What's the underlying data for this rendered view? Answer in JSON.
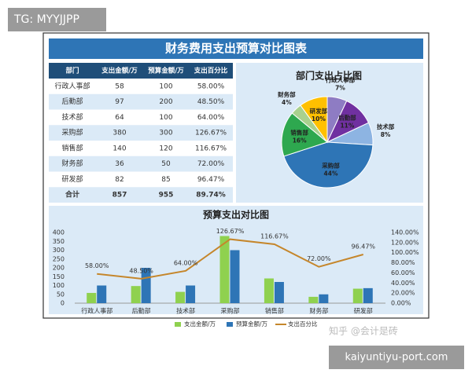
{
  "tag": "TG: MYYJJPP",
  "header": {
    "title": "财务费用支出预算对比图表"
  },
  "table": {
    "columns": [
      "部门",
      "支出金额/万",
      "预算金额/万",
      "支出百分比"
    ],
    "rows": [
      [
        "行政人事部",
        "58",
        "100",
        "58.00%"
      ],
      [
        "后勤部",
        "97",
        "200",
        "48.50%"
      ],
      [
        "技术部",
        "64",
        "100",
        "64.00%"
      ],
      [
        "采购部",
        "380",
        "300",
        "126.67%"
      ],
      [
        "销售部",
        "140",
        "120",
        "116.67%"
      ],
      [
        "财务部",
        "36",
        "50",
        "72.00%"
      ],
      [
        "研发部",
        "82",
        "85",
        "96.47%"
      ],
      [
        "合计",
        "857",
        "955",
        "89.74%"
      ]
    ]
  },
  "chart_data": [
    {
      "type": "pie",
      "title": "部门支出占比图",
      "categories": [
        "行政人事部",
        "后勤部",
        "技术部",
        "采购部",
        "销售部",
        "财务部",
        "研发部"
      ],
      "values": [
        7,
        11,
        8,
        44,
        16,
        4,
        10
      ],
      "value_labels": [
        "7%",
        "11%",
        "8%",
        "44%",
        "16%",
        "4%",
        "10%"
      ],
      "colors": [
        "#8e7cc3",
        "#7030a0",
        "#8db4e2",
        "#2e75b6",
        "#2ea84f",
        "#a9d18e",
        "#ffc000"
      ]
    },
    {
      "type": "bar",
      "title": "预算支出对比图",
      "categories": [
        "行政人事部",
        "后勤部",
        "技术部",
        "采购部",
        "销售部",
        "财务部",
        "研发部"
      ],
      "series": [
        {
          "name": "支出金额/万",
          "color": "#8fd14f",
          "values": [
            58,
            97,
            64,
            380,
            140,
            36,
            82
          ]
        },
        {
          "name": "预算金额/万",
          "color": "#2e75b6",
          "values": [
            100,
            200,
            100,
            300,
            120,
            50,
            85
          ]
        },
        {
          "name": "支出百分比",
          "type": "line",
          "axis": "y2",
          "color": "#c5862b",
          "values": [
            58,
            48.5,
            64,
            126.67,
            116.67,
            72,
            96.47
          ],
          "value_labels": [
            "58.00%",
            "48.50%",
            "64.00%",
            "126.67%",
            "116.67%",
            "72.00%",
            "96.47%"
          ]
        }
      ],
      "ylim": [
        0,
        400
      ],
      "yticks": [
        0,
        50,
        100,
        150,
        200,
        250,
        300,
        350,
        400
      ],
      "y2lim": [
        0,
        140
      ],
      "y2ticks": [
        {
          "value": 0,
          "label": "0.00%"
        },
        {
          "value": 20,
          "label": "20.00%"
        },
        {
          "value": 40,
          "label": "40.00%"
        },
        {
          "value": 60,
          "label": "60.00%"
        },
        {
          "value": 80,
          "label": "80.00%"
        },
        {
          "value": 100,
          "label": "100.00%"
        },
        {
          "value": 120,
          "label": "120.00%"
        },
        {
          "value": 140,
          "label": "140.00%"
        }
      ],
      "grid": false
    }
  ],
  "watermark": "知乎 @会计是砖",
  "footer": "kaiyuntiyu-port.com"
}
